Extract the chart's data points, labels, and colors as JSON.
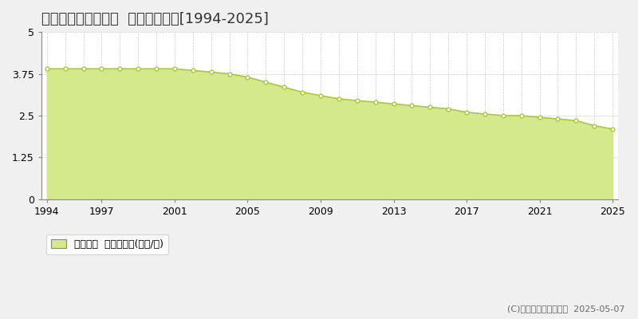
{
  "title": "最上郡真室川町平岡  公示地価推移[1994-2025]",
  "years": [
    1994,
    1995,
    1996,
    1997,
    1998,
    1999,
    2000,
    2001,
    2002,
    2003,
    2004,
    2005,
    2006,
    2007,
    2008,
    2009,
    2010,
    2011,
    2012,
    2013,
    2014,
    2015,
    2016,
    2017,
    2018,
    2019,
    2020,
    2021,
    2022,
    2023,
    2024,
    2025
  ],
  "values": [
    3.9,
    3.9,
    3.9,
    3.9,
    3.9,
    3.9,
    3.9,
    3.9,
    3.85,
    3.8,
    3.75,
    3.65,
    3.5,
    3.35,
    3.2,
    3.1,
    3.0,
    2.95,
    2.9,
    2.85,
    2.8,
    2.75,
    2.7,
    2.6,
    2.55,
    2.5,
    2.5,
    2.45,
    2.4,
    2.35,
    2.2,
    2.1
  ],
  "line_color": "#a8c840",
  "fill_color": "#d4e88c",
  "marker_color": "#ffffff",
  "marker_edge_color": "#a8c840",
  "background_color": "#f0f0f0",
  "plot_bg_color": "#ffffff",
  "grid_color": "#aaaaaa",
  "yticks": [
    0,
    1.25,
    2.5,
    3.75,
    5
  ],
  "ylim": [
    0,
    5
  ],
  "xticks": [
    1994,
    1997,
    2001,
    2005,
    2009,
    2013,
    2017,
    2021,
    2025
  ],
  "legend_label": "公示地価  平均坪単価(万円/坪)",
  "copyright_text": "(C)土地価格ドットコム  2025-05-07",
  "title_fontsize": 13,
  "axis_fontsize": 9,
  "legend_fontsize": 9
}
